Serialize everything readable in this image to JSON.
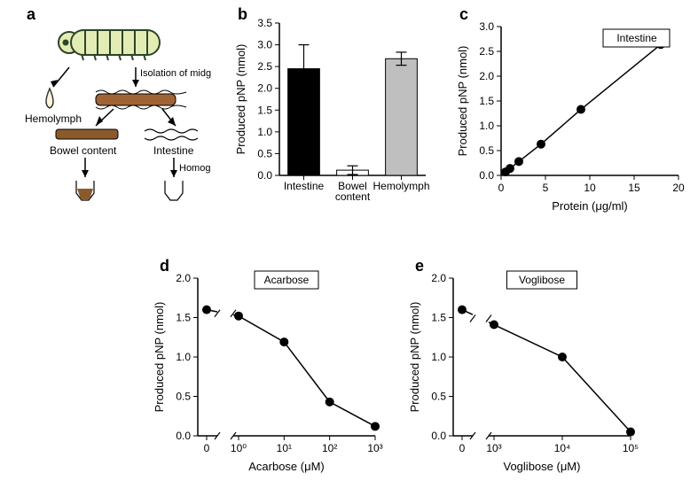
{
  "panels": {
    "a": {
      "label": "a",
      "larva_body_color": "#e4ecb5",
      "larva_outline": "#2c4427",
      "bowel_content_top_fill": "#a06336",
      "intestine_top_fill": "#8b5a2b",
      "hemolymph_fill": "#fef5dc",
      "text_color": "#000000",
      "labels": {
        "hemolymph": "Hemolymph",
        "isolation": "Isolation of midgut",
        "bowel_content": "Bowel content",
        "intestine": "Intestine",
        "homogenize": "Homogenize"
      }
    },
    "b": {
      "label": "b",
      "type": "bar",
      "ylabel": "Produced pNP (nmol)",
      "ylim": [
        0,
        3.5
      ],
      "ytick_step": 0.5,
      "categories": [
        "Intestine",
        "Bowel\ncontent",
        "Hemolymph"
      ],
      "values": [
        2.45,
        0.12,
        2.68
      ],
      "errors": [
        0.55,
        0.1,
        0.15
      ],
      "bar_colors": [
        "#000000",
        "#ffffff",
        "#bfbfbf"
      ],
      "bar_outline": "#000000",
      "background_color": "#ffffff",
      "axis_color": "#000000",
      "label_fontsize": 12
    },
    "c": {
      "label": "c",
      "type": "scatter_line",
      "title": "Intestine",
      "xlabel": "Protein (μg/ml)",
      "ylabel": "Produced pNP (nmol)",
      "xlim": [
        0,
        20
      ],
      "ylim": [
        0,
        3.0
      ],
      "xtick_step": 5,
      "ytick_step": 0.5,
      "x": [
        0.5,
        1.0,
        2.0,
        4.5,
        9.0,
        18.0
      ],
      "y": [
        0.07,
        0.14,
        0.28,
        0.63,
        1.33,
        2.64
      ],
      "marker_color": "#000000",
      "line_color": "#000000",
      "marker_size": 5,
      "line_width": 1.5,
      "background_color": "#ffffff",
      "axis_color": "#000000",
      "label_fontsize": 12
    },
    "d": {
      "label": "d",
      "type": "scatter_line_log",
      "title": "Acarbose",
      "xlabel": "Acarbose (μM)",
      "ylabel": "Produced pNP (nmol)",
      "ylim": [
        0,
        2.0
      ],
      "ytick_step": 0.5,
      "x_zero_value": 1.6,
      "x_log_ticks": [
        0,
        1,
        2,
        3
      ],
      "x_log_labels": [
        "10⁰",
        "10¹",
        "10²",
        "10³"
      ],
      "y_log": [
        1.52,
        1.19,
        0.43,
        0.12
      ],
      "marker_color": "#000000",
      "line_color": "#000000",
      "marker_size": 5,
      "line_width": 1.5,
      "background_color": "#ffffff",
      "axis_color": "#000000",
      "label_fontsize": 12
    },
    "e": {
      "label": "e",
      "type": "scatter_line_log",
      "title": "Voglibose",
      "xlabel": "Voglibose (μM)",
      "ylabel": "Produced pNP (nmol)",
      "ylim": [
        0,
        2.0
      ],
      "ytick_step": 0.5,
      "x_zero_value": 1.6,
      "x_log_ticks": [
        3,
        4,
        5
      ],
      "x_log_labels": [
        "10³",
        "10⁴",
        "10⁵"
      ],
      "y_log": [
        1.41,
        1.0,
        0.05
      ],
      "marker_color": "#000000",
      "line_color": "#000000",
      "marker_size": 5,
      "line_width": 1.5,
      "background_color": "#ffffff",
      "axis_color": "#000000",
      "label_fontsize": 12
    }
  }
}
